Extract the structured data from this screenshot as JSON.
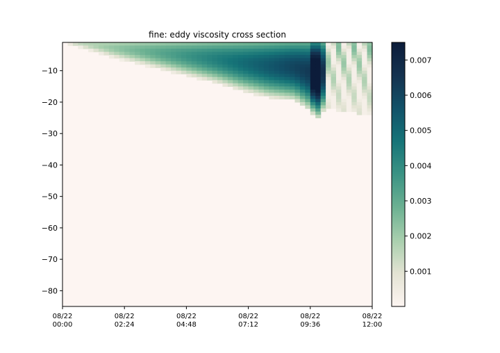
{
  "chart_data": {
    "type": "heatmap",
    "title": "fine: eddy viscosity cross section",
    "xlabel": "",
    "ylabel": "",
    "x_tick_labels": [
      [
        "08/22",
        "00:00"
      ],
      [
        "08/22",
        "02:24"
      ],
      [
        "08/22",
        "04:48"
      ],
      [
        "08/22",
        "07:12"
      ],
      [
        "08/22",
        "09:36"
      ],
      [
        "08/22",
        "12:00"
      ]
    ],
    "x_range_hours": [
      0,
      12
    ],
    "y_ticks": [
      -10,
      -20,
      -30,
      -40,
      -50,
      -60,
      -70,
      -80
    ],
    "y_tick_labels": [
      "−10",
      "−20",
      "−30",
      "−40",
      "−50",
      "−60",
      "−70",
      "−80"
    ],
    "ylim": [
      -85,
      -1
    ],
    "colorbar": {
      "ticks": [
        0.001,
        0.002,
        0.003,
        0.004,
        0.005,
        0.006,
        0.007
      ],
      "tick_labels": [
        "0.001",
        "0.002",
        "0.003",
        "0.004",
        "0.005",
        "0.006",
        "0.007"
      ],
      "range": [
        0.0,
        0.0075
      ],
      "colormap": [
        "#fdf5f2",
        "#e3e3d3",
        "#a9cfae",
        "#6cb192",
        "#3b9384",
        "#167478",
        "#125269",
        "#14324f",
        "#0c1c3a"
      ]
    },
    "mixed_layer_depth": {
      "time_hours": [
        0,
        1,
        2,
        3,
        4,
        5,
        6,
        7,
        8,
        9,
        9.6,
        9.9,
        10.2,
        11,
        12
      ],
      "depth": [
        -1,
        -3.5,
        -6,
        -8,
        -10,
        -12,
        -14,
        -16.5,
        -18.5,
        -19.5,
        -23,
        -25,
        -22,
        -23,
        -24
      ]
    },
    "grid": false,
    "legend": "none"
  }
}
